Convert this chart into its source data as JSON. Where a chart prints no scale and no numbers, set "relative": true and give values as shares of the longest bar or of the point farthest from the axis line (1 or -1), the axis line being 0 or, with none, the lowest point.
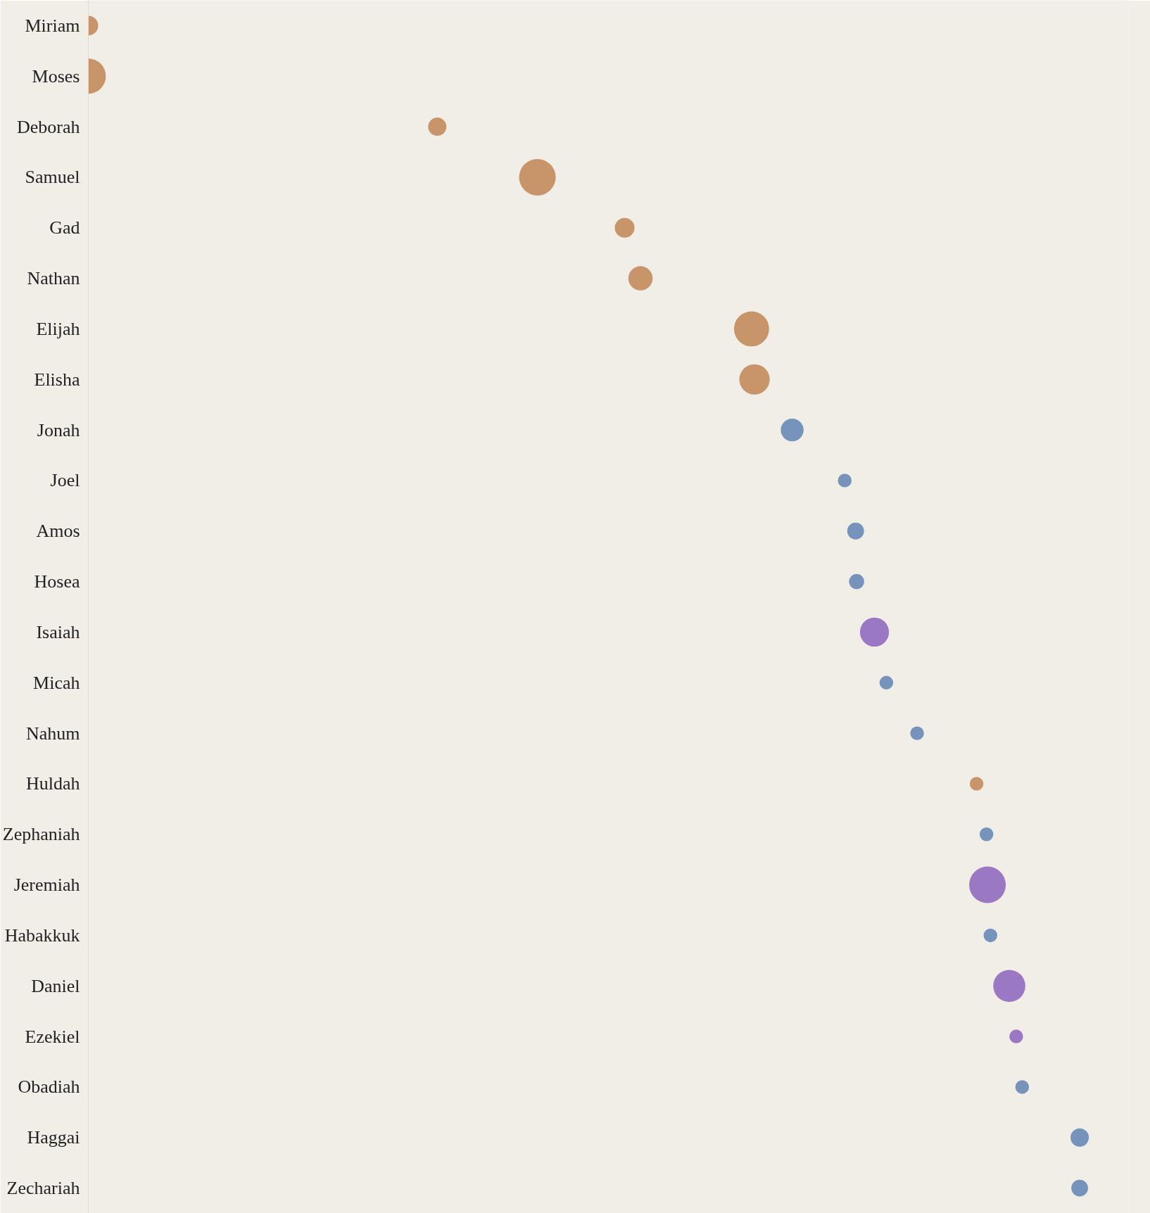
{
  "chart_data": {
    "type": "bubble",
    "orientation": "horizontal",
    "relative": true,
    "categories": [
      "Miriam",
      "Moses",
      "Deborah",
      "Samuel",
      "Gad",
      "Nathan",
      "Elijah",
      "Elisha",
      "Jonah",
      "Joel",
      "Amos",
      "Hosea",
      "Isaiah",
      "Micah",
      "Nahum",
      "Huldah",
      "Zephaniah",
      "Jeremiah",
      "Habakkuk",
      "Daniel",
      "Ezekiel",
      "Obadiah",
      "Haggai",
      "Zechariah"
    ],
    "values": [
      0,
      0,
      0.352,
      0.453,
      0.541,
      0.557,
      0.669,
      0.672,
      0.71,
      0.763,
      0.774,
      0.775,
      0.793,
      0.805,
      0.836,
      0.896,
      0.906,
      0.907,
      0.91,
      0.929,
      0.936,
      0.942,
      1,
      1
    ],
    "sizes": [
      0.29,
      0.92,
      0.25,
      1,
      0.29,
      0.44,
      0.92,
      0.69,
      0.39,
      0.14,
      0.21,
      0.17,
      0.63,
      0.14,
      0.14,
      0.14,
      0.14,
      1,
      0.14,
      0.77,
      0.14,
      0.14,
      0.25,
      0.21
    ],
    "colors": [
      "#c8956a",
      "#c8956a",
      "#c8956a",
      "#c8956a",
      "#c8956a",
      "#c8956a",
      "#c8956a",
      "#c8956a",
      "#7593bb",
      "#7593bb",
      "#7593bb",
      "#7593bb",
      "#9b78c4",
      "#7593bb",
      "#7593bb",
      "#c8956a",
      "#7593bb",
      "#9b78c4",
      "#7593bb",
      "#9b78c4",
      "#9b78c4",
      "#7593bb",
      "#7593bb",
      "#7593bb"
    ],
    "marker": "circle"
  }
}
